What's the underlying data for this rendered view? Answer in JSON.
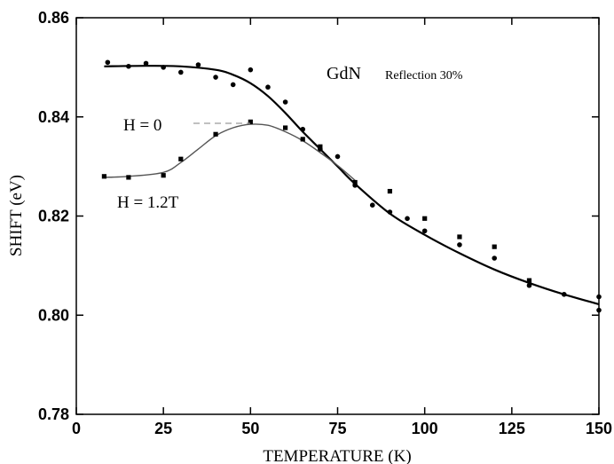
{
  "chart_data": {
    "type": "scatter",
    "xlabel": "TEMPERATURE (K)",
    "ylabel": "SHIFT (eV)",
    "xlim": [
      0,
      150
    ],
    "ylim": [
      0.78,
      0.86
    ],
    "xticks": [
      0,
      25,
      50,
      75,
      100,
      125,
      150
    ],
    "yticks": [
      0.78,
      0.8,
      0.82,
      0.84,
      0.86
    ],
    "xtick_labels": [
      "0",
      "25",
      "50",
      "75",
      "100",
      "125",
      "150"
    ],
    "ytick_labels": [
      "0.78",
      "0.80",
      "0.82",
      "0.84",
      "0.86"
    ],
    "grid": false,
    "annotations": {
      "sample": "GdN",
      "condition": "Reflection 30%",
      "h0": "H = 0",
      "h12": "H = 1.2T"
    },
    "series": [
      {
        "name": "H = 0",
        "marker": "circle",
        "points": [
          [
            9,
            0.851
          ],
          [
            15,
            0.8502
          ],
          [
            20,
            0.8508
          ],
          [
            25,
            0.85
          ],
          [
            30,
            0.849
          ],
          [
            35,
            0.8505
          ],
          [
            40,
            0.848
          ],
          [
            45,
            0.8465
          ],
          [
            50,
            0.8495
          ],
          [
            55,
            0.846
          ],
          [
            60,
            0.843
          ],
          [
            65,
            0.8375
          ],
          [
            70,
            0.8335
          ],
          [
            75,
            0.832
          ],
          [
            80,
            0.8262
          ],
          [
            85,
            0.8222
          ],
          [
            90,
            0.8208
          ],
          [
            95,
            0.8195
          ],
          [
            100,
            0.817
          ],
          [
            110,
            0.8142
          ],
          [
            120,
            0.8115
          ],
          [
            130,
            0.806
          ],
          [
            140,
            0.8042
          ],
          [
            150,
            0.8037
          ],
          [
            150,
            0.801
          ]
        ],
        "fit": [
          [
            8,
            0.8502
          ],
          [
            20,
            0.8503
          ],
          [
            30,
            0.8502
          ],
          [
            40,
            0.8495
          ],
          [
            45,
            0.8485
          ],
          [
            50,
            0.8468
          ],
          [
            55,
            0.8442
          ],
          [
            60,
            0.8408
          ],
          [
            65,
            0.837
          ],
          [
            70,
            0.8335
          ],
          [
            75,
            0.83
          ],
          [
            80,
            0.8265
          ],
          [
            90,
            0.8205
          ],
          [
            100,
            0.8162
          ],
          [
            110,
            0.8125
          ],
          [
            120,
            0.8092
          ],
          [
            130,
            0.8065
          ],
          [
            140,
            0.8042
          ],
          [
            150,
            0.8022
          ]
        ]
      },
      {
        "name": "H = 1.2T",
        "marker": "square",
        "points": [
          [
            8,
            0.828
          ],
          [
            15,
            0.8278
          ],
          [
            25,
            0.8282
          ],
          [
            30,
            0.8315
          ],
          [
            40,
            0.8365
          ],
          [
            50,
            0.839
          ],
          [
            60,
            0.8378
          ],
          [
            65,
            0.8355
          ],
          [
            70,
            0.834
          ],
          [
            80,
            0.8268
          ],
          [
            90,
            0.825
          ],
          [
            100,
            0.8195
          ],
          [
            110,
            0.8158
          ],
          [
            120,
            0.8138
          ],
          [
            130,
            0.807
          ]
        ],
        "fit": [
          [
            8,
            0.8278
          ],
          [
            15,
            0.828
          ],
          [
            25,
            0.8288
          ],
          [
            30,
            0.8308
          ],
          [
            35,
            0.8335
          ],
          [
            40,
            0.8362
          ],
          [
            45,
            0.8378
          ],
          [
            50,
            0.8385
          ],
          [
            55,
            0.8383
          ],
          [
            60,
            0.837
          ],
          [
            65,
            0.8352
          ],
          [
            70,
            0.8328
          ],
          [
            75,
            0.8302
          ],
          [
            80,
            0.8272
          ]
        ]
      }
    ]
  }
}
